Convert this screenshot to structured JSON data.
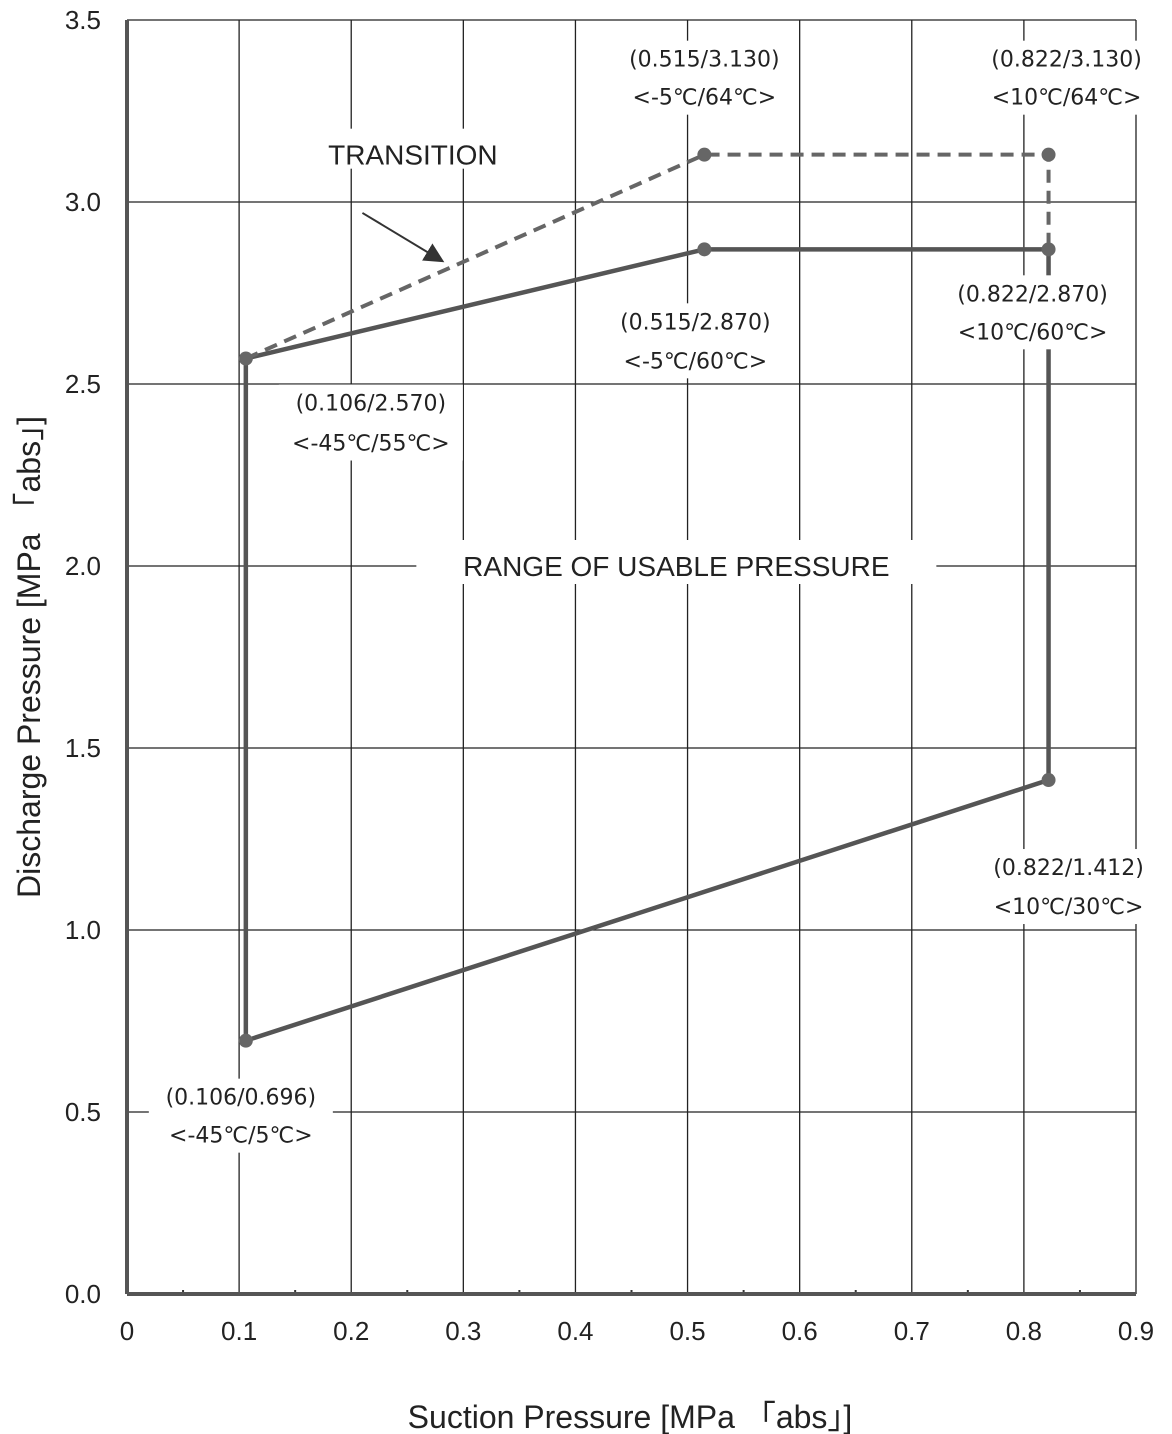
{
  "chart_data": {
    "type": "line",
    "xlabel": "Suction Pressure [MPa 「abs」]",
    "ylabel": "Discharge Pressure [MPa 「abs」]",
    "xlim": [
      0,
      0.9
    ],
    "ylim": [
      0,
      3.5
    ],
    "x_ticks": [
      {
        "v": 0,
        "label": "0"
      },
      {
        "v": 0.1,
        "label": "0.1"
      },
      {
        "v": 0.2,
        "label": "0.2"
      },
      {
        "v": 0.3,
        "label": "0.3"
      },
      {
        "v": 0.4,
        "label": "0.4"
      },
      {
        "v": 0.5,
        "label": "0.5"
      },
      {
        "v": 0.6,
        "label": "0.6"
      },
      {
        "v": 0.7,
        "label": "0.7"
      },
      {
        "v": 0.8,
        "label": "0.8"
      },
      {
        "v": 0.9,
        "label": "0.9"
      }
    ],
    "y_ticks": [
      {
        "v": 0,
        "label": "0.0"
      },
      {
        "v": 0.5,
        "label": "0.5"
      },
      {
        "v": 1.0,
        "label": "1.0"
      },
      {
        "v": 1.5,
        "label": "1.5"
      },
      {
        "v": 2.0,
        "label": "2.0"
      },
      {
        "v": 2.5,
        "label": "2.5"
      },
      {
        "v": 3.0,
        "label": "3.0"
      },
      {
        "v": 3.5,
        "label": "3.5"
      }
    ],
    "grid": true,
    "series": [
      {
        "name": "RANGE OF USABLE PRESSURE",
        "style": "solid",
        "color": "#555555",
        "points": [
          {
            "x": 0.106,
            "y": 0.696
          },
          {
            "x": 0.106,
            "y": 2.57
          },
          {
            "x": 0.515,
            "y": 2.87
          },
          {
            "x": 0.822,
            "y": 2.87
          },
          {
            "x": 0.822,
            "y": 1.412
          },
          {
            "x": 0.106,
            "y": 0.696
          }
        ]
      },
      {
        "name": "TRANSITION",
        "style": "dashed",
        "color": "#666666",
        "points": [
          {
            "x": 0.106,
            "y": 2.57
          },
          {
            "x": 0.515,
            "y": 3.13
          },
          {
            "x": 0.822,
            "y": 3.13
          },
          {
            "x": 0.822,
            "y": 2.87
          }
        ]
      }
    ],
    "markers": [
      {
        "x": 0.106,
        "y": 0.696
      },
      {
        "x": 0.106,
        "y": 2.57
      },
      {
        "x": 0.515,
        "y": 2.87
      },
      {
        "x": 0.822,
        "y": 2.87
      },
      {
        "x": 0.822,
        "y": 1.412
      },
      {
        "x": 0.515,
        "y": 3.13
      },
      {
        "x": 0.822,
        "y": 3.13
      }
    ],
    "annotations": [
      {
        "x": 0.515,
        "y": 3.13,
        "line1": "(0.515/3.130)",
        "line2": "<-5℃/64℃>"
      },
      {
        "x": 0.822,
        "y": 3.13,
        "line1": "(0.822/3.130)",
        "line2": "<10℃/64℃>"
      },
      {
        "x": 0.515,
        "y": 2.87,
        "line1": "(0.515/2.870)",
        "line2": "<-5℃/60℃>"
      },
      {
        "x": 0.822,
        "y": 2.87,
        "line1": "(0.822/2.870)",
        "line2": "<10℃/60℃>"
      },
      {
        "x": 0.106,
        "y": 2.57,
        "line1": "(0.106/2.570)",
        "line2": "<-45℃/55℃>"
      },
      {
        "x": 0.822,
        "y": 1.412,
        "line1": "(0.822/1.412)",
        "line2": "<10℃/30℃>"
      },
      {
        "x": 0.106,
        "y": 0.696,
        "line1": "(0.106/0.696)",
        "line2": "<-45℃/5℃>"
      }
    ],
    "labels": {
      "transition": "TRANSITION",
      "range": "RANGE OF USABLE PRESSURE"
    }
  }
}
